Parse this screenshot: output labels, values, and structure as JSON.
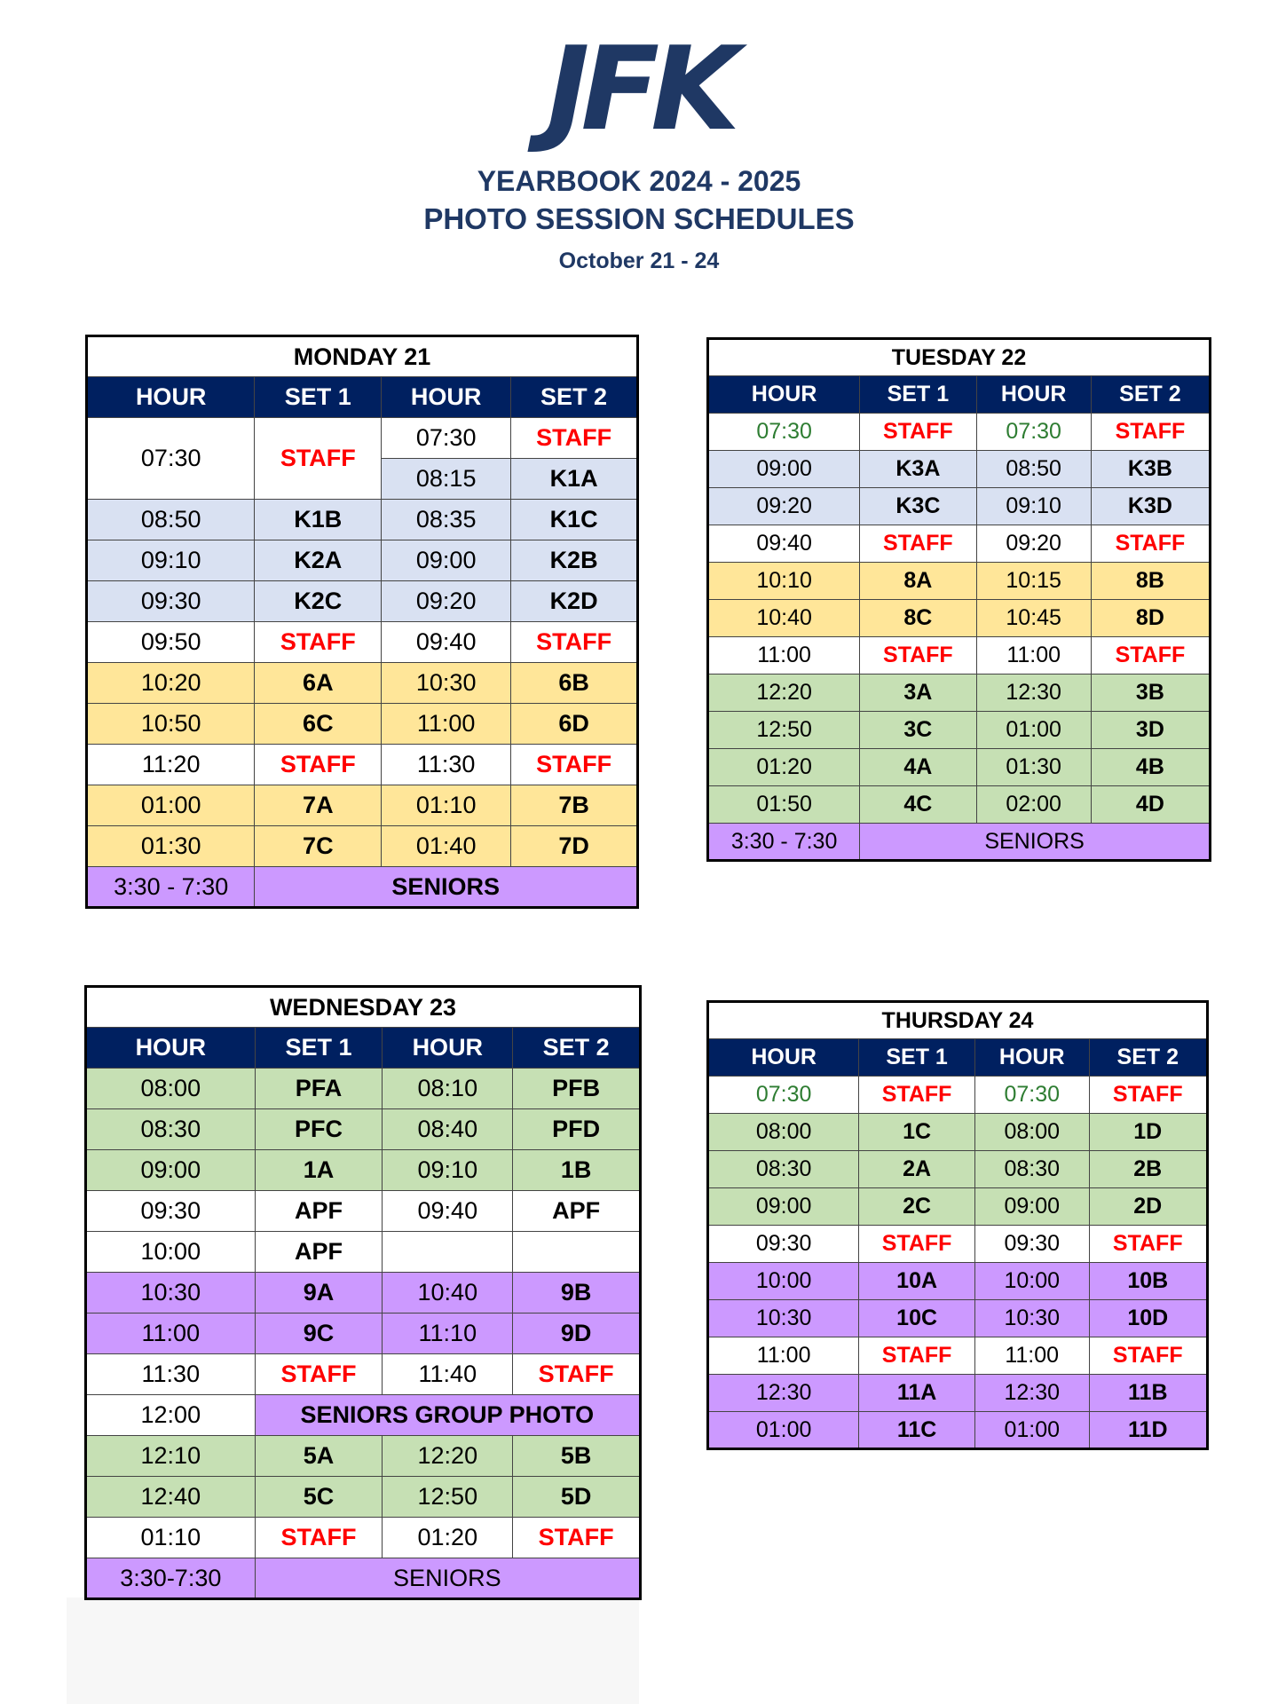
{
  "header": {
    "logo": "JFK",
    "title_line1": "YEARBOOK 2024 - 2025",
    "title_line2": "PHOTO SESSION SCHEDULES",
    "dates": "October 21 - 24"
  },
  "tables": [
    {
      "title": "MONDAY 21",
      "columns": [
        "HOUR",
        "SET 1",
        "HOUR",
        "SET 2"
      ],
      "rows": [
        {
          "bg": "#ffffff",
          "cells": [
            {
              "text": "07:30",
              "rowspan": 2
            },
            {
              "text": "STAFF",
              "rowspan": 2,
              "color": "#ff0000"
            },
            "07:30",
            {
              "text": "STAFF",
              "color": "#ff0000"
            }
          ]
        },
        {
          "bg": "#d9e1f2",
          "cells": [
            "08:15",
            "K1A"
          ]
        },
        {
          "bg": "#d9e1f2",
          "cells": [
            "08:50",
            "K1B",
            "08:35",
            "K1C"
          ]
        },
        {
          "bg": "#d9e1f2",
          "cells": [
            "09:10",
            "K2A",
            "09:00",
            "K2B"
          ]
        },
        {
          "bg": "#d9e1f2",
          "cells": [
            "09:30",
            "K2C",
            "09:20",
            "K2D"
          ]
        },
        {
          "bg": "#ffffff",
          "cells": [
            "09:50",
            {
              "text": "STAFF",
              "color": "#ff0000"
            },
            "09:40",
            {
              "text": "STAFF",
              "color": "#ff0000"
            }
          ]
        },
        {
          "bg": "#ffe699",
          "cells": [
            "10:20",
            "6A",
            "10:30",
            "6B"
          ]
        },
        {
          "bg": "#ffe699",
          "cells": [
            "10:50",
            "6C",
            "11:00",
            "6D"
          ]
        },
        {
          "bg": "#ffffff",
          "cells": [
            "11:20",
            {
              "text": "STAFF",
              "color": "#ff0000"
            },
            "11:30",
            {
              "text": "STAFF",
              "color": "#ff0000"
            }
          ]
        },
        {
          "bg": "#ffe699",
          "cells": [
            "01:00",
            "7A",
            "01:10",
            "7B"
          ]
        },
        {
          "bg": "#ffe699",
          "cells": [
            "01:30",
            "7C",
            "01:40",
            "7D"
          ]
        },
        {
          "bg": "#cc99ff",
          "cells": [
            "3:30 - 7:30",
            {
              "text": "SENIORS",
              "colspan": 3
            }
          ]
        }
      ]
    },
    {
      "title": "TUESDAY 22",
      "columns": [
        "HOUR",
        "SET 1",
        "HOUR",
        "SET 2"
      ],
      "rows": [
        {
          "bg": "#ffffff",
          "cells": [
            {
              "text": "07:30",
              "color": "#2e7d32"
            },
            {
              "text": "STAFF",
              "color": "#ff0000"
            },
            {
              "text": "07:30",
              "color": "#2e7d32"
            },
            {
              "text": "STAFF",
              "color": "#ff0000"
            }
          ]
        },
        {
          "bg": "#d9e1f2",
          "cells": [
            "09:00",
            "K3A",
            "08:50",
            "K3B"
          ]
        },
        {
          "bg": "#d9e1f2",
          "cells": [
            "09:20",
            "K3C",
            "09:10",
            "K3D"
          ]
        },
        {
          "bg": "#ffffff",
          "cells": [
            "09:40",
            {
              "text": "STAFF",
              "color": "#ff0000"
            },
            "09:20",
            {
              "text": "STAFF",
              "color": "#ff0000"
            }
          ]
        },
        {
          "bg": "#ffe699",
          "cells": [
            "10:10",
            "8A",
            "10:15",
            "8B"
          ]
        },
        {
          "bg": "#ffe699",
          "cells": [
            "10:40",
            "8C",
            "10:45",
            "8D"
          ]
        },
        {
          "bg": "#ffffff",
          "cells": [
            "11:00",
            {
              "text": "STAFF",
              "color": "#ff0000"
            },
            "11:00",
            {
              "text": "STAFF",
              "color": "#ff0000"
            }
          ]
        },
        {
          "bg": "#c6e0b4",
          "cells": [
            "12:20",
            "3A",
            "12:30",
            "3B"
          ]
        },
        {
          "bg": "#c6e0b4",
          "cells": [
            "12:50",
            "3C",
            "01:00",
            "3D"
          ]
        },
        {
          "bg": "#c6e0b4",
          "cells": [
            "01:20",
            "4A",
            "01:30",
            "4B"
          ]
        },
        {
          "bg": "#c6e0b4",
          "cells": [
            "01:50",
            "4C",
            "02:00",
            "4D"
          ]
        },
        {
          "bg": "#cc99ff",
          "cells": [
            "3:30 - 7:30",
            {
              "text": "SENIORS",
              "colspan": 3,
              "bold": false
            }
          ]
        }
      ]
    },
    {
      "title": "WEDNESDAY 23",
      "columns": [
        "HOUR",
        "SET 1",
        "HOUR",
        "SET 2"
      ],
      "rows": [
        {
          "bg": "#c6e0b4",
          "cells": [
            "08:00",
            "PFA",
            "08:10",
            "PFB"
          ]
        },
        {
          "bg": "#c6e0b4",
          "cells": [
            "08:30",
            "PFC",
            "08:40",
            "PFD"
          ]
        },
        {
          "bg": "#c6e0b4",
          "cells": [
            "09:00",
            "1A",
            "09:10",
            "1B"
          ]
        },
        {
          "bg": "#ffffff",
          "cells": [
            "09:30",
            "APF",
            "09:40",
            "APF"
          ]
        },
        {
          "bg": "#ffffff",
          "cells": [
            "10:00",
            "APF",
            null,
            null
          ]
        },
        {
          "bg": "#cc99ff",
          "cells": [
            "10:30",
            "9A",
            "10:40",
            "9B"
          ]
        },
        {
          "bg": "#cc99ff",
          "cells": [
            "11:00",
            "9C",
            "11:10",
            "9D"
          ]
        },
        {
          "bg": "#ffffff",
          "cells": [
            "11:30",
            {
              "text": "STAFF",
              "color": "#ff0000"
            },
            "11:40",
            {
              "text": "STAFF",
              "color": "#ff0000"
            }
          ]
        },
        {
          "bg": "#ffffff",
          "cells": [
            "12:00",
            {
              "text": "SENIORS GROUP PHOTO",
              "colspan": 3,
              "bg": "#cc99ff"
            }
          ]
        },
        {
          "bg": "#c6e0b4",
          "cells": [
            "12:10",
            "5A",
            "12:20",
            "5B"
          ]
        },
        {
          "bg": "#c6e0b4",
          "cells": [
            "12:40",
            "5C",
            "12:50",
            "5D"
          ]
        },
        {
          "bg": "#ffffff",
          "cells": [
            "01:10",
            {
              "text": "STAFF",
              "color": "#ff0000"
            },
            "01:20",
            {
              "text": "STAFF",
              "color": "#ff0000"
            }
          ]
        },
        {
          "bg": "#cc99ff",
          "cells": [
            "3:30-7:30",
            {
              "text": "SENIORS",
              "colspan": 3,
              "bold": false
            }
          ]
        }
      ]
    },
    {
      "title": "THURSDAY 24",
      "columns": [
        "HOUR",
        "SET 1",
        "HOUR",
        "SET 2"
      ],
      "rows": [
        {
          "bg": "#ffffff",
          "cells": [
            {
              "text": "07:30",
              "color": "#2e7d32"
            },
            {
              "text": "STAFF",
              "color": "#ff0000"
            },
            {
              "text": "07:30",
              "color": "#2e7d32"
            },
            {
              "text": "STAFF",
              "color": "#ff0000"
            }
          ]
        },
        {
          "bg": "#c6e0b4",
          "cells": [
            "08:00",
            "1C",
            "08:00",
            "1D"
          ]
        },
        {
          "bg": "#c6e0b4",
          "cells": [
            "08:30",
            "2A",
            "08:30",
            "2B"
          ]
        },
        {
          "bg": "#c6e0b4",
          "cells": [
            "09:00",
            "2C",
            "09:00",
            "2D"
          ]
        },
        {
          "bg": "#ffffff",
          "cells": [
            "09:30",
            {
              "text": "STAFF",
              "color": "#ff0000"
            },
            "09:30",
            {
              "text": "STAFF",
              "color": "#ff0000"
            }
          ]
        },
        {
          "bg": "#cc99ff",
          "cells": [
            "10:00",
            "10A",
            "10:00",
            "10B"
          ]
        },
        {
          "bg": "#cc99ff",
          "cells": [
            "10:30",
            "10C",
            "10:30",
            "10D"
          ]
        },
        {
          "bg": "#ffffff",
          "cells": [
            "11:00",
            {
              "text": "STAFF",
              "color": "#ff0000"
            },
            "11:00",
            {
              "text": "STAFF",
              "color": "#ff0000"
            }
          ]
        },
        {
          "bg": "#cc99ff",
          "cells": [
            "12:30",
            "11A",
            "12:30",
            "11B"
          ]
        },
        {
          "bg": "#cc99ff",
          "cells": [
            "01:00",
            "11C",
            "01:00",
            "11D"
          ]
        }
      ]
    }
  ]
}
